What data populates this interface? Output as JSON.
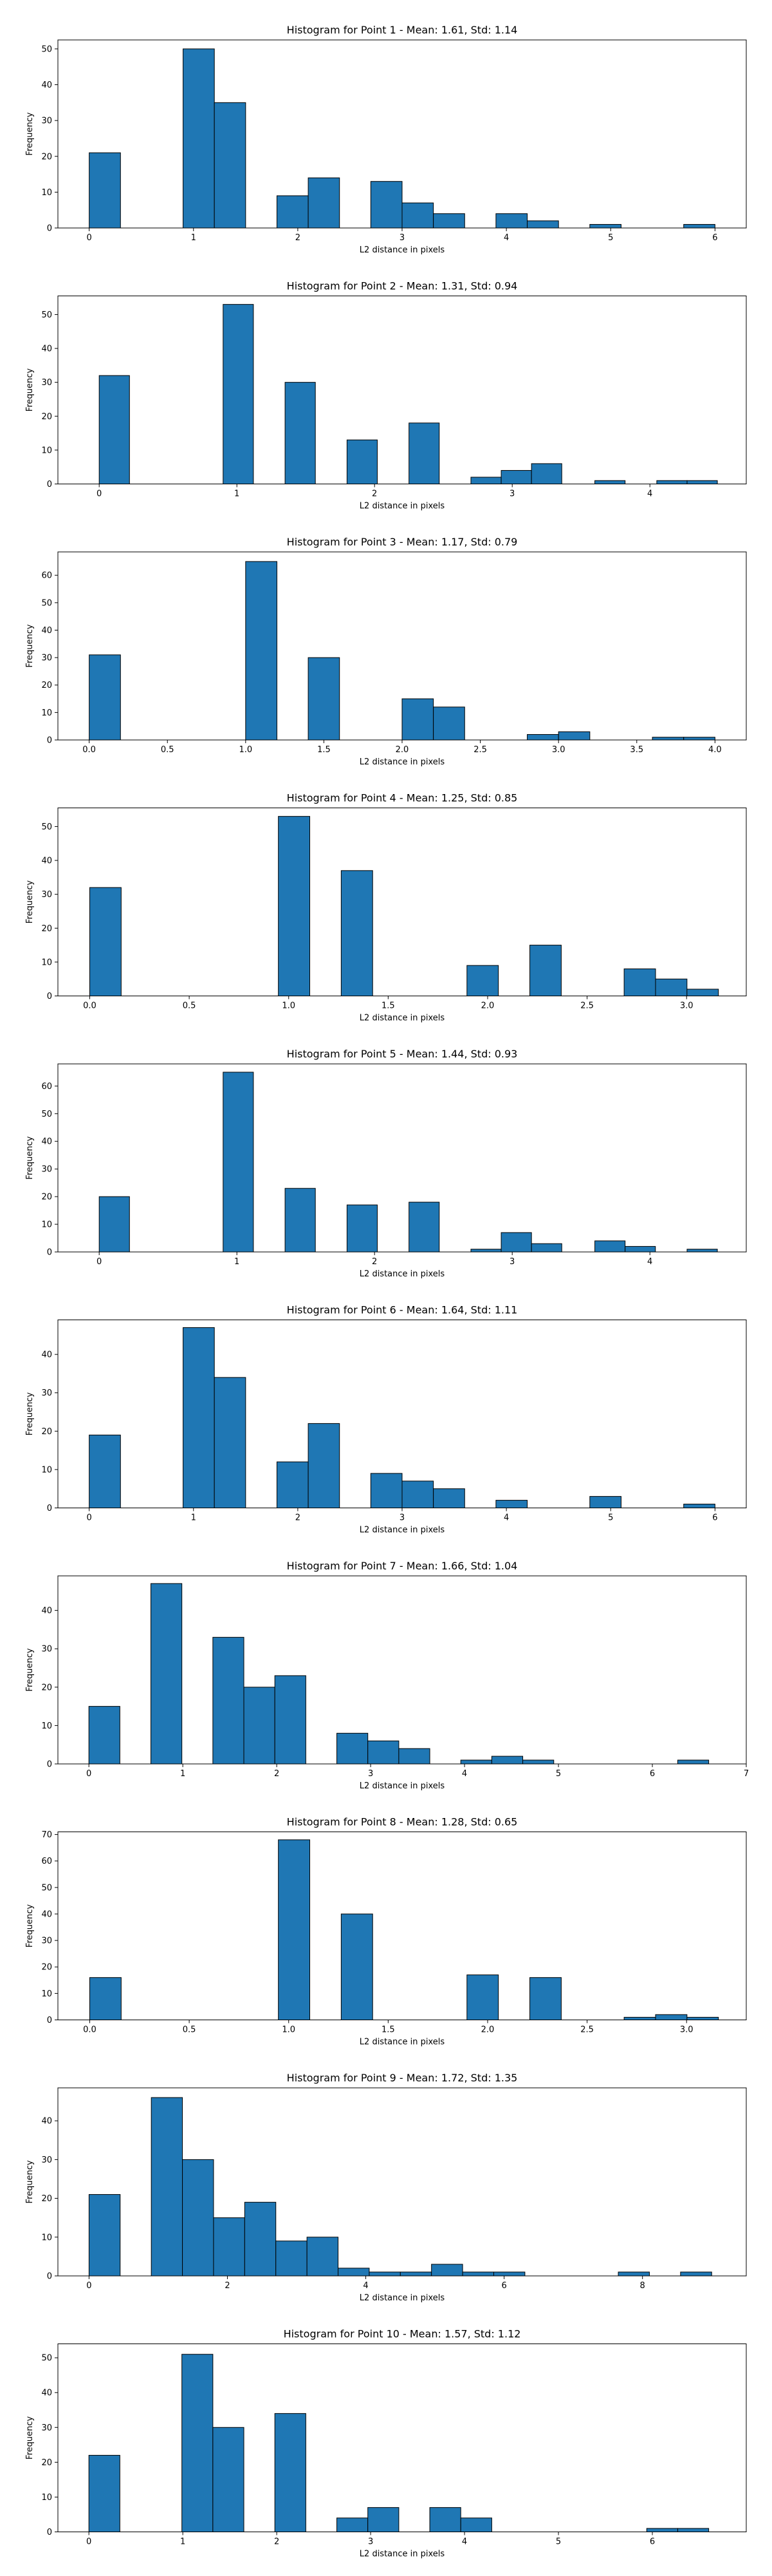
{
  "chart_data": [
    {
      "type": "bar",
      "title": "Histogram for Point 1 - Mean: 1.61, Std: 1.14",
      "xlabel": "L2 distance in pixels",
      "ylabel": "Frequency",
      "xlim": [
        -0.3,
        6.3
      ],
      "ylim": [
        0,
        52.5
      ],
      "xticks": [
        {
          "v": 0,
          "label": "0"
        },
        {
          "v": 1,
          "label": "1"
        },
        {
          "v": 2,
          "label": "2"
        },
        {
          "v": 3,
          "label": "3"
        },
        {
          "v": 4,
          "label": "4"
        },
        {
          "v": 5,
          "label": "5"
        },
        {
          "v": 6,
          "label": "6"
        }
      ],
      "yticks": [
        0,
        10,
        20,
        30,
        40,
        50
      ],
      "bins": [
        [
          0,
          0.3,
          21
        ],
        [
          0.9,
          1.2,
          50
        ],
        [
          1.2,
          1.5,
          35
        ],
        [
          1.8,
          2.1,
          9
        ],
        [
          2.1,
          2.4,
          14
        ],
        [
          2.7,
          3.0,
          13
        ],
        [
          3.0,
          3.3,
          7
        ],
        [
          3.3,
          3.6,
          4
        ],
        [
          3.9,
          4.2,
          4
        ],
        [
          4.2,
          4.5,
          2
        ],
        [
          4.8,
          5.1,
          1
        ],
        [
          5.7,
          6.0,
          1
        ]
      ]
    },
    {
      "type": "bar",
      "title": "Histogram for Point 2 - Mean: 1.31, Std: 0.94",
      "xlabel": "L2 distance in pixels",
      "ylabel": "Frequency",
      "xlim": [
        -0.3,
        4.7
      ],
      "ylim": [
        0,
        55.5
      ],
      "xticks": [
        {
          "v": 0,
          "label": "0"
        },
        {
          "v": 1,
          "label": "1"
        },
        {
          "v": 2,
          "label": "2"
        },
        {
          "v": 3,
          "label": "3"
        },
        {
          "v": 4,
          "label": "4"
        }
      ],
      "yticks": [
        0,
        10,
        20,
        30,
        40,
        50
      ],
      "bins": [
        [
          0,
          0.22,
          32
        ],
        [
          0.9,
          1.12,
          53
        ],
        [
          1.35,
          1.57,
          30
        ],
        [
          1.8,
          2.02,
          13
        ],
        [
          2.25,
          2.47,
          18
        ],
        [
          2.7,
          2.92,
          2
        ],
        [
          2.92,
          3.14,
          4
        ],
        [
          3.14,
          3.36,
          6
        ],
        [
          3.6,
          3.82,
          1
        ],
        [
          4.05,
          4.27,
          1
        ],
        [
          4.27,
          4.49,
          1
        ]
      ]
    },
    {
      "type": "bar",
      "title": "Histogram for Point 3 - Mean: 1.17, Std: 0.79",
      "xlabel": "L2 distance in pixels",
      "ylabel": "Frequency",
      "xlim": [
        -0.2,
        4.2
      ],
      "ylim": [
        0,
        68.5
      ],
      "xticks": [
        {
          "v": 0,
          "label": "0.0"
        },
        {
          "v": 0.5,
          "label": "0.5"
        },
        {
          "v": 1,
          "label": "1.0"
        },
        {
          "v": 1.5,
          "label": "1.5"
        },
        {
          "v": 2,
          "label": "2.0"
        },
        {
          "v": 2.5,
          "label": "2.5"
        },
        {
          "v": 3,
          "label": "3.0"
        },
        {
          "v": 3.5,
          "label": "3.5"
        },
        {
          "v": 4,
          "label": "4.0"
        }
      ],
      "yticks": [
        0,
        10,
        20,
        30,
        40,
        50,
        60
      ],
      "bins": [
        [
          0,
          0.2,
          31
        ],
        [
          1,
          1.2,
          65
        ],
        [
          1.4,
          1.6,
          30
        ],
        [
          2,
          2.2,
          15
        ],
        [
          2.2,
          2.4,
          12
        ],
        [
          2.8,
          3.0,
          2
        ],
        [
          3.0,
          3.2,
          3
        ],
        [
          3.6,
          3.8,
          1
        ],
        [
          3.8,
          4.0,
          1
        ]
      ]
    },
    {
      "type": "bar",
      "title": "Histogram for Point 4 - Mean: 1.25, Std: 0.85",
      "xlabel": "L2 distance in pixels",
      "ylabel": "Frequency",
      "xlim": [
        -0.16,
        3.3
      ],
      "ylim": [
        0,
        55.5
      ],
      "xticks": [
        {
          "v": 0,
          "label": "0.0"
        },
        {
          "v": 0.5,
          "label": "0.5"
        },
        {
          "v": 1,
          "label": "1.0"
        },
        {
          "v": 1.5,
          "label": "1.5"
        },
        {
          "v": 2,
          "label": "2.0"
        },
        {
          "v": 2.5,
          "label": "2.5"
        },
        {
          "v": 3,
          "label": "3.0"
        }
      ],
      "yticks": [
        0,
        10,
        20,
        30,
        40,
        50
      ],
      "bins": [
        [
          0,
          0.158,
          32
        ],
        [
          0.948,
          1.106,
          53
        ],
        [
          1.264,
          1.422,
          37
        ],
        [
          1.896,
          2.054,
          9
        ],
        [
          2.212,
          2.37,
          15
        ],
        [
          2.686,
          2.844,
          8
        ],
        [
          2.844,
          3.002,
          5
        ],
        [
          3.002,
          3.16,
          2
        ]
      ]
    },
    {
      "type": "bar",
      "title": "Histogram for Point 5 - Mean: 1.44, Std: 0.93",
      "xlabel": "L2 distance in pixels",
      "ylabel": "Frequency",
      "xlim": [
        -0.3,
        4.7
      ],
      "ylim": [
        0,
        68
      ],
      "xticks": [
        {
          "v": 0,
          "label": "0"
        },
        {
          "v": 1,
          "label": "1"
        },
        {
          "v": 2,
          "label": "2"
        },
        {
          "v": 3,
          "label": "3"
        },
        {
          "v": 4,
          "label": "4"
        }
      ],
      "yticks": [
        0,
        10,
        20,
        30,
        40,
        50,
        60
      ],
      "bins": [
        [
          0,
          0.22,
          20
        ],
        [
          0.9,
          1.12,
          65
        ],
        [
          1.35,
          1.57,
          23
        ],
        [
          1.8,
          2.02,
          17
        ],
        [
          2.25,
          2.47,
          18
        ],
        [
          2.7,
          2.92,
          1
        ],
        [
          2.92,
          3.14,
          7
        ],
        [
          3.14,
          3.36,
          3
        ],
        [
          3.6,
          3.82,
          4
        ],
        [
          3.82,
          4.04,
          2
        ],
        [
          4.27,
          4.49,
          1
        ]
      ]
    },
    {
      "type": "bar",
      "title": "Histogram for Point 6 - Mean: 1.64, Std: 1.11",
      "xlabel": "L2 distance in pixels",
      "ylabel": "Frequency",
      "xlim": [
        -0.3,
        6.3
      ],
      "ylim": [
        0,
        49
      ],
      "xticks": [
        {
          "v": 0,
          "label": "0"
        },
        {
          "v": 1,
          "label": "1"
        },
        {
          "v": 2,
          "label": "2"
        },
        {
          "v": 3,
          "label": "3"
        },
        {
          "v": 4,
          "label": "4"
        },
        {
          "v": 5,
          "label": "5"
        },
        {
          "v": 6,
          "label": "6"
        }
      ],
      "yticks": [
        0,
        10,
        20,
        30,
        40
      ],
      "bins": [
        [
          0,
          0.3,
          19
        ],
        [
          0.9,
          1.2,
          47
        ],
        [
          1.2,
          1.5,
          34
        ],
        [
          1.8,
          2.1,
          12
        ],
        [
          2.1,
          2.4,
          22
        ],
        [
          2.7,
          3.0,
          9
        ],
        [
          3.0,
          3.3,
          7
        ],
        [
          3.3,
          3.6,
          5
        ],
        [
          3.9,
          4.2,
          2
        ],
        [
          4.8,
          5.1,
          3
        ],
        [
          5.7,
          6.0,
          1
        ]
      ]
    },
    {
      "type": "bar",
      "title": "Histogram for Point 7 - Mean: 1.66, Std: 1.04",
      "xlabel": "L2 distance in pixels",
      "ylabel": "Frequency",
      "xlim": [
        -0.33,
        7.0
      ],
      "ylim": [
        0,
        49
      ],
      "xticks": [
        {
          "v": 0,
          "label": "0"
        },
        {
          "v": 1,
          "label": "1"
        },
        {
          "v": 2,
          "label": "2"
        },
        {
          "v": 3,
          "label": "3"
        },
        {
          "v": 4,
          "label": "4"
        },
        {
          "v": 5,
          "label": "5"
        },
        {
          "v": 6,
          "label": "6"
        },
        {
          "v": 7,
          "label": "7"
        }
      ],
      "yticks": [
        0,
        10,
        20,
        30,
        40
      ],
      "bins": [
        [
          0,
          0.33,
          15
        ],
        [
          0.66,
          0.99,
          47
        ],
        [
          1.32,
          1.65,
          33
        ],
        [
          1.65,
          1.98,
          20
        ],
        [
          1.98,
          2.31,
          23
        ],
        [
          2.64,
          2.97,
          8
        ],
        [
          2.97,
          3.3,
          6
        ],
        [
          3.3,
          3.63,
          4
        ],
        [
          3.96,
          4.29,
          1
        ],
        [
          4.29,
          4.62,
          2
        ],
        [
          4.62,
          4.95,
          1
        ],
        [
          6.27,
          6.6,
          1
        ]
      ]
    },
    {
      "type": "bar",
      "title": "Histogram for Point 8 - Mean: 1.28, Std: 0.65",
      "xlabel": "L2 distance in pixels",
      "ylabel": "Frequency",
      "xlim": [
        -0.16,
        3.3
      ],
      "ylim": [
        0,
        71
      ],
      "xticks": [
        {
          "v": 0,
          "label": "0.0"
        },
        {
          "v": 0.5,
          "label": "0.5"
        },
        {
          "v": 1,
          "label": "1.0"
        },
        {
          "v": 1.5,
          "label": "1.5"
        },
        {
          "v": 2,
          "label": "2.0"
        },
        {
          "v": 2.5,
          "label": "2.5"
        },
        {
          "v": 3,
          "label": "3.0"
        }
      ],
      "yticks": [
        0,
        10,
        20,
        30,
        40,
        50,
        60,
        70
      ],
      "bins": [
        [
          0,
          0.158,
          16
        ],
        [
          0.948,
          1.106,
          68
        ],
        [
          1.264,
          1.422,
          40
        ],
        [
          1.896,
          2.054,
          17
        ],
        [
          2.212,
          2.37,
          16
        ],
        [
          2.686,
          2.844,
          1
        ],
        [
          2.844,
          3.002,
          2
        ],
        [
          3.002,
          3.16,
          1
        ]
      ]
    },
    {
      "type": "bar",
      "title": "Histogram for Point 9 - Mean: 1.72, Std: 1.35",
      "xlabel": "L2 distance in pixels",
      "ylabel": "Frequency",
      "xlim": [
        -0.45,
        9.5
      ],
      "ylim": [
        0,
        48.5
      ],
      "xticks": [
        {
          "v": 0,
          "label": "0"
        },
        {
          "v": 2,
          "label": "2"
        },
        {
          "v": 4,
          "label": "4"
        },
        {
          "v": 6,
          "label": "6"
        },
        {
          "v": 8,
          "label": "8"
        }
      ],
      "yticks": [
        0,
        10,
        20,
        30,
        40
      ],
      "bins": [
        [
          0,
          0.45,
          21
        ],
        [
          0.9,
          1.35,
          46
        ],
        [
          1.35,
          1.8,
          30
        ],
        [
          1.8,
          2.25,
          15
        ],
        [
          2.25,
          2.7,
          19
        ],
        [
          2.7,
          3.15,
          9
        ],
        [
          3.15,
          3.6,
          10
        ],
        [
          3.6,
          4.05,
          2
        ],
        [
          4.05,
          4.5,
          1
        ],
        [
          4.5,
          4.95,
          1
        ],
        [
          4.95,
          5.4,
          3
        ],
        [
          5.4,
          5.85,
          1
        ],
        [
          5.85,
          6.3,
          1
        ],
        [
          7.65,
          8.1,
          1
        ],
        [
          8.55,
          9.0,
          1
        ]
      ]
    },
    {
      "type": "bar",
      "title": "Histogram for Point 10 - Mean: 1.57, Std: 1.12",
      "xlabel": "L2 distance in pixels",
      "ylabel": "Frequency",
      "xlim": [
        -0.33,
        7.0
      ],
      "ylim": [
        0,
        54
      ],
      "xticks": [
        {
          "v": 0,
          "label": "0"
        },
        {
          "v": 1,
          "label": "1"
        },
        {
          "v": 2,
          "label": "2"
        },
        {
          "v": 3,
          "label": "3"
        },
        {
          "v": 4,
          "label": "4"
        },
        {
          "v": 5,
          "label": "5"
        },
        {
          "v": 6,
          "label": "6"
        }
      ],
      "yticks": [
        0,
        10,
        20,
        30,
        40,
        50
      ],
      "bins": [
        [
          0,
          0.33,
          22
        ],
        [
          0.99,
          1.32,
          51
        ],
        [
          1.32,
          1.65,
          30
        ],
        [
          1.98,
          2.31,
          34
        ],
        [
          2.64,
          2.97,
          4
        ],
        [
          2.97,
          3.3,
          7
        ],
        [
          3.63,
          3.96,
          7
        ],
        [
          3.96,
          4.29,
          4
        ],
        [
          5.94,
          6.27,
          1
        ],
        [
          6.27,
          6.6,
          1
        ]
      ]
    }
  ],
  "colors": {
    "bar_fill": "#1f77b4",
    "bar_edge": "#000000",
    "axes": "#000000",
    "text": "#000000"
  }
}
